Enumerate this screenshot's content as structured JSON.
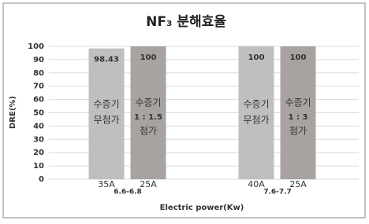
{
  "chart_data": {
    "type": "bar",
    "title": "NF₃ 분해효율",
    "y_label": "DRE(%)",
    "x_label": "Electric power(Kw)",
    "categories": [
      "35A",
      "25A",
      "40A",
      "25A"
    ],
    "groups": [
      "6.6-6.8",
      "7.6-7.7"
    ],
    "values": [
      98.43,
      100,
      100,
      100
    ],
    "colors": [
      "#bfbfbf",
      "#a8a3a1",
      "#bfbfbf",
      "#a8a3a1"
    ],
    "bar_texts": [
      [
        "수증기",
        "무첨가"
      ],
      [
        "수증기",
        "1 : 1.5",
        "첨가"
      ],
      [
        "수증기",
        "무첨가"
      ],
      [
        "수증기",
        "1 : 3",
        "첨가"
      ]
    ],
    "ylim": [
      0,
      100
    ],
    "yticks": [
      0,
      10,
      20,
      30,
      40,
      50,
      60,
      70,
      80,
      90,
      100
    ],
    "grid": true
  }
}
